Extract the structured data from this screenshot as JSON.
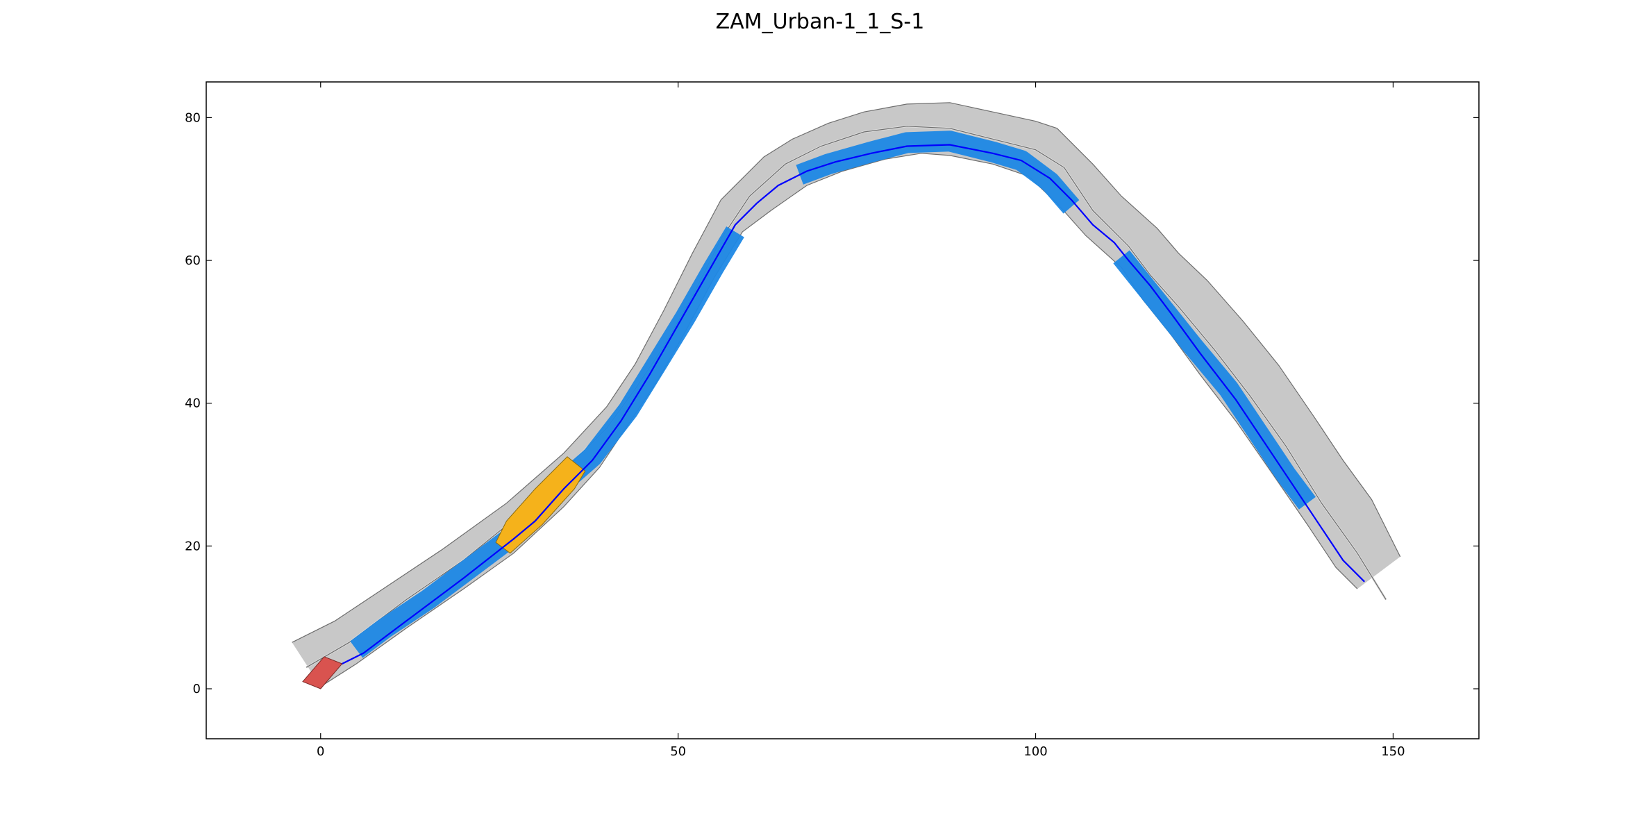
{
  "chart_data": {
    "type": "line",
    "title": "ZAM_Urban-1_1_S-1",
    "xlabel": "",
    "ylabel": "",
    "xlim": [
      -16,
      162
    ],
    "ylim": [
      -7,
      85
    ],
    "x_ticks": [
      0,
      50,
      100,
      150
    ],
    "y_ticks": [
      0,
      20,
      40,
      60,
      80
    ],
    "grid": false,
    "colors": {
      "road_fill": "#c8c8c8",
      "road_edge": "#6e6e6e",
      "lane_marking": "#dcdcdc",
      "corridor": "#1e88e5",
      "path_line": "#0000ff",
      "ego_vehicle": "#d9534f",
      "obstacle": "#f5b21b"
    },
    "road": {
      "left_boundary": [
        [
          -4,
          6.5
        ],
        [
          2,
          9.5
        ],
        [
          8,
          13.5
        ],
        [
          17,
          19.5
        ],
        [
          26,
          26
        ],
        [
          34,
          33
        ],
        [
          40,
          39.5
        ],
        [
          44,
          45.5
        ],
        [
          48,
          53
        ],
        [
          52,
          61
        ],
        [
          56,
          68.5
        ],
        [
          58,
          70.5
        ],
        [
          62,
          74.5
        ],
        [
          66,
          77
        ],
        [
          71,
          79.2
        ],
        [
          76,
          80.8
        ],
        [
          82,
          81.9
        ],
        [
          88,
          82.1
        ],
        [
          94,
          80.8
        ],
        [
          100,
          79.5
        ],
        [
          103,
          78.5
        ],
        [
          108,
          73.5
        ],
        [
          112,
          69
        ],
        [
          117,
          64.5
        ],
        [
          120,
          61
        ],
        [
          124,
          57.2
        ],
        [
          129,
          51.5
        ],
        [
          134,
          45.3
        ],
        [
          139,
          38
        ],
        [
          143,
          32
        ],
        [
          147,
          26.5
        ],
        [
          151,
          18.5
        ]
      ],
      "center_line": [
        [
          -2,
          3
        ],
        [
          4,
          6.5
        ],
        [
          12,
          12.5
        ],
        [
          20,
          18
        ],
        [
          28,
          24.5
        ],
        [
          35,
          31.5
        ],
        [
          40,
          36.5
        ],
        [
          44,
          42
        ],
        [
          48,
          48
        ],
        [
          52,
          55
        ],
        [
          56,
          63
        ],
        [
          60,
          69
        ],
        [
          65,
          73.5
        ],
        [
          70,
          76
        ],
        [
          76,
          78
        ],
        [
          82,
          78.8
        ],
        [
          88,
          78.5
        ],
        [
          94,
          77
        ],
        [
          100,
          75.5
        ],
        [
          104,
          73
        ],
        [
          108,
          67
        ],
        [
          113,
          62
        ],
        [
          116,
          58
        ],
        [
          120,
          53.5
        ],
        [
          125,
          47.5
        ],
        [
          130,
          41
        ],
        [
          135,
          34
        ],
        [
          140,
          26
        ],
        [
          145,
          19
        ],
        [
          149,
          12.5
        ]
      ],
      "right_boundary": [
        [
          0,
          0.3
        ],
        [
          5,
          3.5
        ],
        [
          12,
          8.5
        ],
        [
          20,
          14
        ],
        [
          27,
          19
        ],
        [
          34,
          25.5
        ],
        [
          39,
          31
        ],
        [
          43,
          37
        ],
        [
          47,
          43
        ],
        [
          51,
          50
        ],
        [
          55,
          57.5
        ],
        [
          59,
          64
        ],
        [
          63,
          67
        ],
        [
          68,
          70.5
        ],
        [
          73,
          72.5
        ],
        [
          79,
          74.2
        ],
        [
          84,
          75
        ],
        [
          88,
          74.7
        ],
        [
          94,
          73.5
        ],
        [
          99,
          71.8
        ],
        [
          103,
          68
        ],
        [
          107,
          63.5
        ],
        [
          112,
          59
        ],
        [
          115,
          54.5
        ],
        [
          119,
          49.5
        ],
        [
          123,
          44
        ],
        [
          128,
          37.5
        ],
        [
          133,
          30.3
        ],
        [
          138,
          23
        ],
        [
          142,
          17
        ],
        [
          145,
          14
        ]
      ]
    },
    "series": [
      {
        "type": "path",
        "points": [
          [
            0,
            2
          ],
          [
            3,
            3.5
          ],
          [
            6,
            5
          ],
          [
            12,
            9.5
          ],
          [
            20,
            15.5
          ],
          [
            27,
            21
          ],
          [
            30,
            23.5
          ],
          [
            34,
            28
          ],
          [
            38,
            32
          ],
          [
            42,
            37.5
          ],
          [
            46,
            44
          ],
          [
            50,
            51
          ],
          [
            54,
            58
          ],
          [
            58,
            65
          ],
          [
            61,
            68
          ],
          [
            64,
            70.5
          ],
          [
            68,
            72.5
          ],
          [
            72,
            73.8
          ],
          [
            77,
            75
          ],
          [
            82,
            76
          ],
          [
            88,
            76.2
          ],
          [
            94,
            75
          ],
          [
            98,
            74
          ],
          [
            102,
            71.5
          ],
          [
            105,
            68.5
          ],
          [
            108,
            65
          ],
          [
            111,
            62.5
          ],
          [
            113,
            60
          ],
          [
            116,
            56.5
          ],
          [
            119,
            52.5
          ],
          [
            123,
            47
          ],
          [
            128,
            40.5
          ],
          [
            133,
            33
          ],
          [
            138,
            25.5
          ],
          [
            143,
            18
          ],
          [
            146,
            15
          ]
        ]
      },
      {
        "type": "corridor",
        "segments": [
          [
            [
              5,
              5.5
            ],
            [
              9,
              8.5
            ],
            [
              15,
              12.5
            ],
            [
              21,
              17
            ],
            [
              25,
              20
            ],
            [
              27,
              21.5
            ]
          ],
          [
            [
              34,
              29
            ],
            [
              38,
              32.5
            ],
            [
              43,
              39
            ],
            [
              47,
              45.5
            ],
            [
              51,
              52
            ],
            [
              55,
              59
            ],
            [
              58,
              64
            ]
          ],
          [
            [
              67,
              72
            ],
            [
              71,
              73.5
            ],
            [
              77,
              75.2
            ],
            [
              82,
              76.5
            ],
            [
              88,
              76.7
            ],
            [
              94,
              75.2
            ],
            [
              98,
              74
            ],
            [
              102,
              71
            ],
            [
              105,
              67.5
            ]
          ],
          [
            [
              112,
              60.5
            ],
            [
              114,
              58
            ],
            [
              118,
              53
            ],
            [
              122,
              48
            ],
            [
              127,
              42
            ],
            [
              131,
              36
            ],
            [
              135,
              30
            ],
            [
              138,
              26
            ]
          ]
        ]
      },
      {
        "type": "obstacle",
        "points": [
          [
            26.5,
            19
          ],
          [
            31,
            23
          ],
          [
            35.5,
            28
          ],
          [
            37,
            30.5
          ],
          [
            34.5,
            32.5
          ],
          [
            30,
            28
          ],
          [
            26,
            23.5
          ],
          [
            24.5,
            20.5
          ]
        ]
      },
      {
        "type": "ego_vehicle",
        "points": [
          [
            -2.5,
            1
          ],
          [
            0,
            0
          ],
          [
            3,
            3.5
          ],
          [
            0.5,
            4.5
          ]
        ]
      }
    ]
  }
}
